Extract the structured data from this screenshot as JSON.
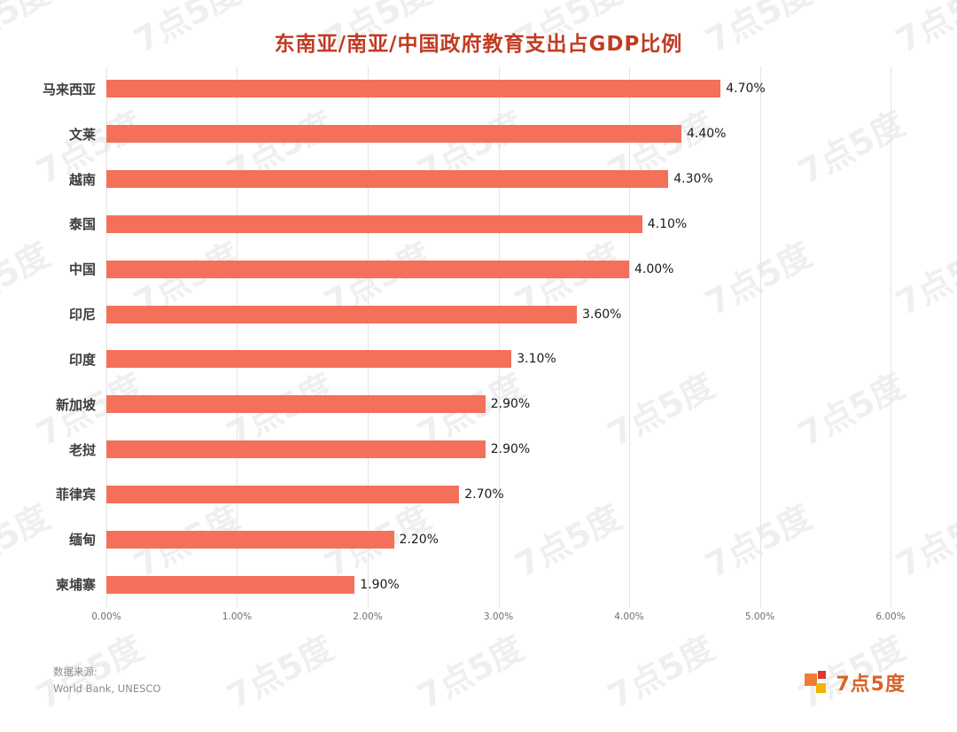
{
  "chart_data": {
    "type": "bar",
    "orientation": "horizontal",
    "title": "东南亚/南亚/中国政府教育支出占GDP比例",
    "categories": [
      "马来西亚",
      "文莱",
      "越南",
      "泰国",
      "中国",
      "印尼",
      "印度",
      "新加坡",
      "老挝",
      "菲律宾",
      "缅甸",
      "柬埔寨"
    ],
    "values": [
      4.7,
      4.4,
      4.3,
      4.1,
      4.0,
      3.6,
      3.1,
      2.9,
      2.9,
      2.7,
      2.2,
      1.9
    ],
    "value_labels": [
      "4.70%",
      "4.40%",
      "4.30%",
      "4.10%",
      "4.00%",
      "3.60%",
      "3.10%",
      "2.90%",
      "2.90%",
      "2.70%",
      "2.20%",
      "1.90%"
    ],
    "x_ticks": [
      "0.00%",
      "1.00%",
      "2.00%",
      "3.00%",
      "4.00%",
      "5.00%",
      "6.00%"
    ],
    "xlim": [
      0,
      6
    ],
    "bar_color": "#F4705B",
    "grid": true,
    "legend": "none"
  },
  "footer": {
    "source_label": "数据来源:",
    "source_value": "World Bank, UNESCO"
  },
  "logo": {
    "text": "7点5度"
  },
  "watermark": {
    "text": "7点5度"
  },
  "colors": {
    "title": "#C13B21",
    "bar": "#F4705B",
    "gridline": "#E4E4E4"
  }
}
